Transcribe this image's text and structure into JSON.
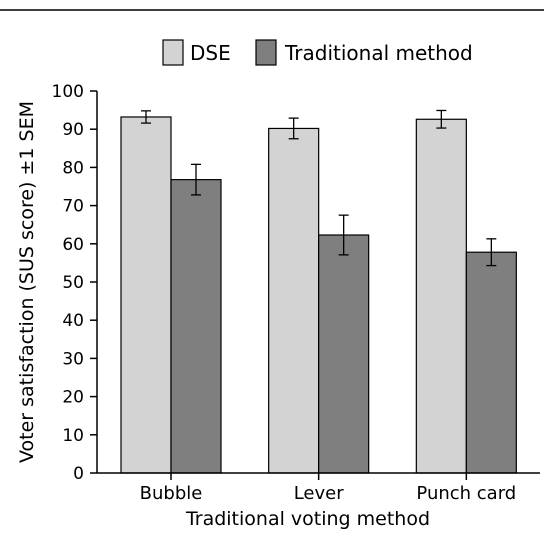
{
  "chart_data": {
    "type": "bar",
    "categories": [
      "Bubble",
      "Lever",
      "Punch card"
    ],
    "series": [
      {
        "name": "DSE",
        "color": "#d3d3d3",
        "values": [
          93.2,
          90.2,
          92.6
        ],
        "sem": [
          1.6,
          2.7,
          2.3
        ]
      },
      {
        "name": "Traditional method",
        "color": "#7f7f7f",
        "values": [
          76.8,
          62.3,
          57.8
        ],
        "sem": [
          4.0,
          5.2,
          3.5
        ]
      }
    ],
    "ylabel": "Voter satisfaction (SUS score) ±1 SEM",
    "xlabel": "Traditional voting method",
    "ylim": [
      0,
      100
    ],
    "yticks": [
      0,
      10,
      20,
      30,
      40,
      50,
      60,
      70,
      80,
      90,
      100
    ],
    "legend_position": "top",
    "grid": false
  }
}
